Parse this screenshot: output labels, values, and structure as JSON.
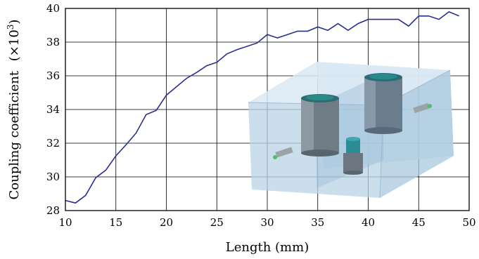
{
  "chart_data": {
    "type": "line",
    "xlabel": "Length (mm)",
    "ylabel_main": "Coupling coefficient",
    "ylabel_unit": "(×10",
    "ylabel_exp": "3",
    "ylabel_close": ")",
    "xlim": [
      10,
      50
    ],
    "ylim": [
      28,
      40
    ],
    "x_ticks": [
      "10",
      "15",
      "20",
      "25",
      "30",
      "35",
      "40",
      "45",
      "50"
    ],
    "y_ticks": [
      "28",
      "30",
      "32",
      "34",
      "36",
      "38",
      "40"
    ],
    "grid": true,
    "series": [
      {
        "color": "#2b2f8f",
        "x": [
          10,
          11,
          12,
          13,
          14,
          15,
          16,
          17,
          18,
          19,
          20,
          21,
          22,
          23,
          24,
          25,
          26,
          27,
          28,
          29,
          30,
          31,
          32,
          33,
          34,
          35,
          36,
          37,
          38,
          39,
          40,
          41,
          42,
          43,
          44,
          45,
          46,
          47,
          48,
          49
        ],
        "y": [
          28.6,
          28.45,
          28.9,
          29.95,
          30.4,
          31.25,
          31.9,
          32.6,
          33.7,
          33.95,
          34.85,
          35.35,
          35.85,
          36.2,
          36.6,
          36.8,
          37.3,
          37.55,
          37.75,
          37.95,
          38.45,
          38.25,
          38.45,
          38.65,
          38.65,
          38.9,
          38.7,
          39.1,
          38.7,
          39.1,
          39.35,
          39.35,
          39.35,
          39.35,
          38.95,
          39.55,
          39.55,
          39.35,
          39.8,
          39.55
        ]
      }
    ]
  },
  "inset": {
    "description_icon": "3d-coupled-cavity-model-icon"
  }
}
